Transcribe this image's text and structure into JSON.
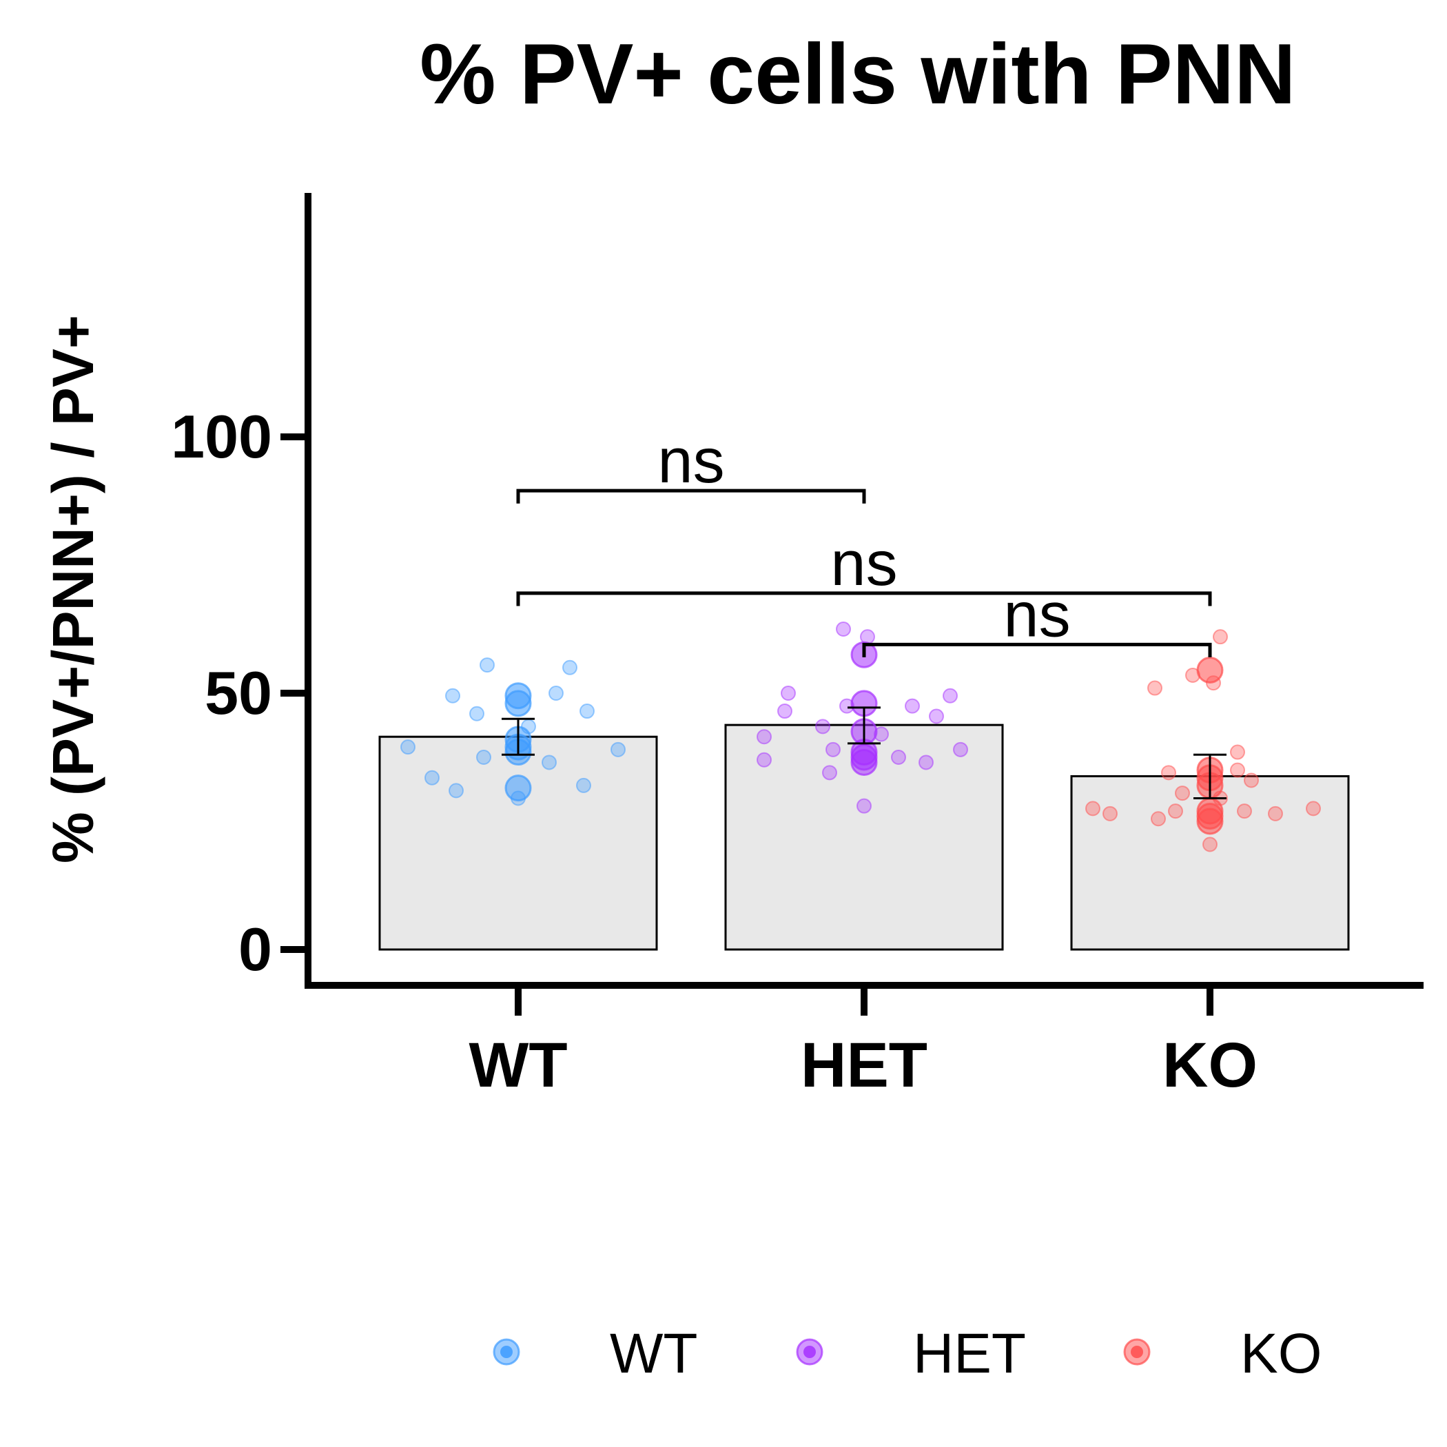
{
  "chart_data": {
    "type": "bar",
    "title": "% PV+ cells with PNN",
    "xlabel": "",
    "ylabel": "% (PV+/PNN+) / PV+",
    "ylim": [
      -7,
      147
    ],
    "yticks": [
      0,
      50,
      100
    ],
    "categories": [
      "WT",
      "HET",
      "KO"
    ],
    "bars": [
      {
        "name": "WT",
        "value": 41.5,
        "error_low": 38.0,
        "error_high": 45.0,
        "bar_color": "#e8e8e8"
      },
      {
        "name": "HET",
        "value": 43.8,
        "error_low": 40.2,
        "error_high": 47.2,
        "bar_color": "#e8e8e8"
      },
      {
        "name": "KO",
        "value": 33.8,
        "error_low": 29.5,
        "error_high": 38.0,
        "bar_color": "#e8e8e8"
      }
    ],
    "series": [
      {
        "name": "WT",
        "color": "#3d9bff",
        "points": [
          {
            "x": -0.09,
            "y": 55.5
          },
          {
            "x": 0.15,
            "y": 55.0
          },
          {
            "x": -0.19,
            "y": 49.5
          },
          {
            "x": 0.11,
            "y": 50.0
          },
          {
            "x": -0.12,
            "y": 46.0
          },
          {
            "x": 0.2,
            "y": 46.5
          },
          {
            "x": 0.03,
            "y": 43.5
          },
          {
            "x": -0.32,
            "y": 39.5
          },
          {
            "x": 0.29,
            "y": 39.0
          },
          {
            "x": -0.1,
            "y": 37.5
          },
          {
            "x": 0.09,
            "y": 36.5
          },
          {
            "x": -0.25,
            "y": 33.5
          },
          {
            "x": -0.18,
            "y": 31.0
          },
          {
            "x": 0.19,
            "y": 32.0
          },
          {
            "x": 0.0,
            "y": 29.5
          }
        ],
        "large_points": [
          {
            "x": 0.0,
            "y": 49.5
          },
          {
            "x": 0.0,
            "y": 48.0
          },
          {
            "x": 0.0,
            "y": 41.0
          },
          {
            "x": 0.0,
            "y": 39.5
          },
          {
            "x": 0.0,
            "y": 38.5
          },
          {
            "x": 0.0,
            "y": 31.5
          }
        ]
      },
      {
        "name": "HET",
        "color": "#a630ff",
        "points": [
          {
            "x": -0.06,
            "y": 62.5
          },
          {
            "x": 0.01,
            "y": 61.0
          },
          {
            "x": -0.22,
            "y": 50.0
          },
          {
            "x": 0.25,
            "y": 49.5
          },
          {
            "x": -0.05,
            "y": 47.5
          },
          {
            "x": -0.23,
            "y": 46.5
          },
          {
            "x": 0.14,
            "y": 47.5
          },
          {
            "x": 0.21,
            "y": 45.5
          },
          {
            "x": -0.12,
            "y": 43.5
          },
          {
            "x": 0.05,
            "y": 42.0
          },
          {
            "x": -0.29,
            "y": 41.5
          },
          {
            "x": -0.09,
            "y": 39.0
          },
          {
            "x": 0.28,
            "y": 39.0
          },
          {
            "x": -0.29,
            "y": 37.0
          },
          {
            "x": 0.1,
            "y": 37.5
          },
          {
            "x": 0.18,
            "y": 36.5
          },
          {
            "x": -0.1,
            "y": 34.5
          },
          {
            "x": 0.0,
            "y": 28.0
          }
        ],
        "large_points": [
          {
            "x": 0.0,
            "y": 57.5
          },
          {
            "x": 0.0,
            "y": 48.0
          },
          {
            "x": 0.0,
            "y": 42.5
          },
          {
            "x": 0.0,
            "y": 38.5
          },
          {
            "x": 0.0,
            "y": 37.5
          },
          {
            "x": 0.0,
            "y": 36.5
          }
        ]
      },
      {
        "name": "KO",
        "color": "#ff4d4d",
        "points": [
          {
            "x": 0.03,
            "y": 61.0
          },
          {
            "x": -0.05,
            "y": 53.5
          },
          {
            "x": 0.01,
            "y": 52.0
          },
          {
            "x": -0.16,
            "y": 51.0
          },
          {
            "x": 0.08,
            "y": 38.5
          },
          {
            "x": -0.12,
            "y": 34.5
          },
          {
            "x": 0.08,
            "y": 35.0
          },
          {
            "x": 0.12,
            "y": 33.0
          },
          {
            "x": -0.08,
            "y": 30.5
          },
          {
            "x": 0.03,
            "y": 29.5
          },
          {
            "x": -0.34,
            "y": 27.5
          },
          {
            "x": -0.29,
            "y": 26.5
          },
          {
            "x": -0.1,
            "y": 27.0
          },
          {
            "x": 0.1,
            "y": 27.0
          },
          {
            "x": 0.19,
            "y": 26.5
          },
          {
            "x": 0.3,
            "y": 27.5
          },
          {
            "x": -0.15,
            "y": 25.5
          },
          {
            "x": 0.0,
            "y": 20.5
          }
        ],
        "large_points": [
          {
            "x": 0.0,
            "y": 54.5
          },
          {
            "x": 0.0,
            "y": 35.0
          },
          {
            "x": 0.0,
            "y": 33.5
          },
          {
            "x": 0.0,
            "y": 32.0
          },
          {
            "x": 0.0,
            "y": 27.0
          },
          {
            "x": 0.0,
            "y": 26.0
          },
          {
            "x": 0.0,
            "y": 25.0
          }
        ]
      }
    ],
    "comparisons": [
      {
        "from": "WT",
        "to": "HET",
        "y": 89.5,
        "drop": 2.5,
        "label": "ns"
      },
      {
        "from": "WT",
        "to": "KO",
        "y": 69.5,
        "drop": 2.5,
        "label": "ns"
      },
      {
        "from": "HET",
        "to": "KO",
        "y": 59.5,
        "drop": 2.5,
        "label": "ns"
      }
    ],
    "legend": {
      "position": "bottom",
      "entries": [
        {
          "label": "WT",
          "color": "#3d9bff"
        },
        {
          "label": "HET",
          "color": "#a630ff"
        },
        {
          "label": "KO",
          "color": "#ff4d4d"
        }
      ]
    },
    "grid": false
  }
}
